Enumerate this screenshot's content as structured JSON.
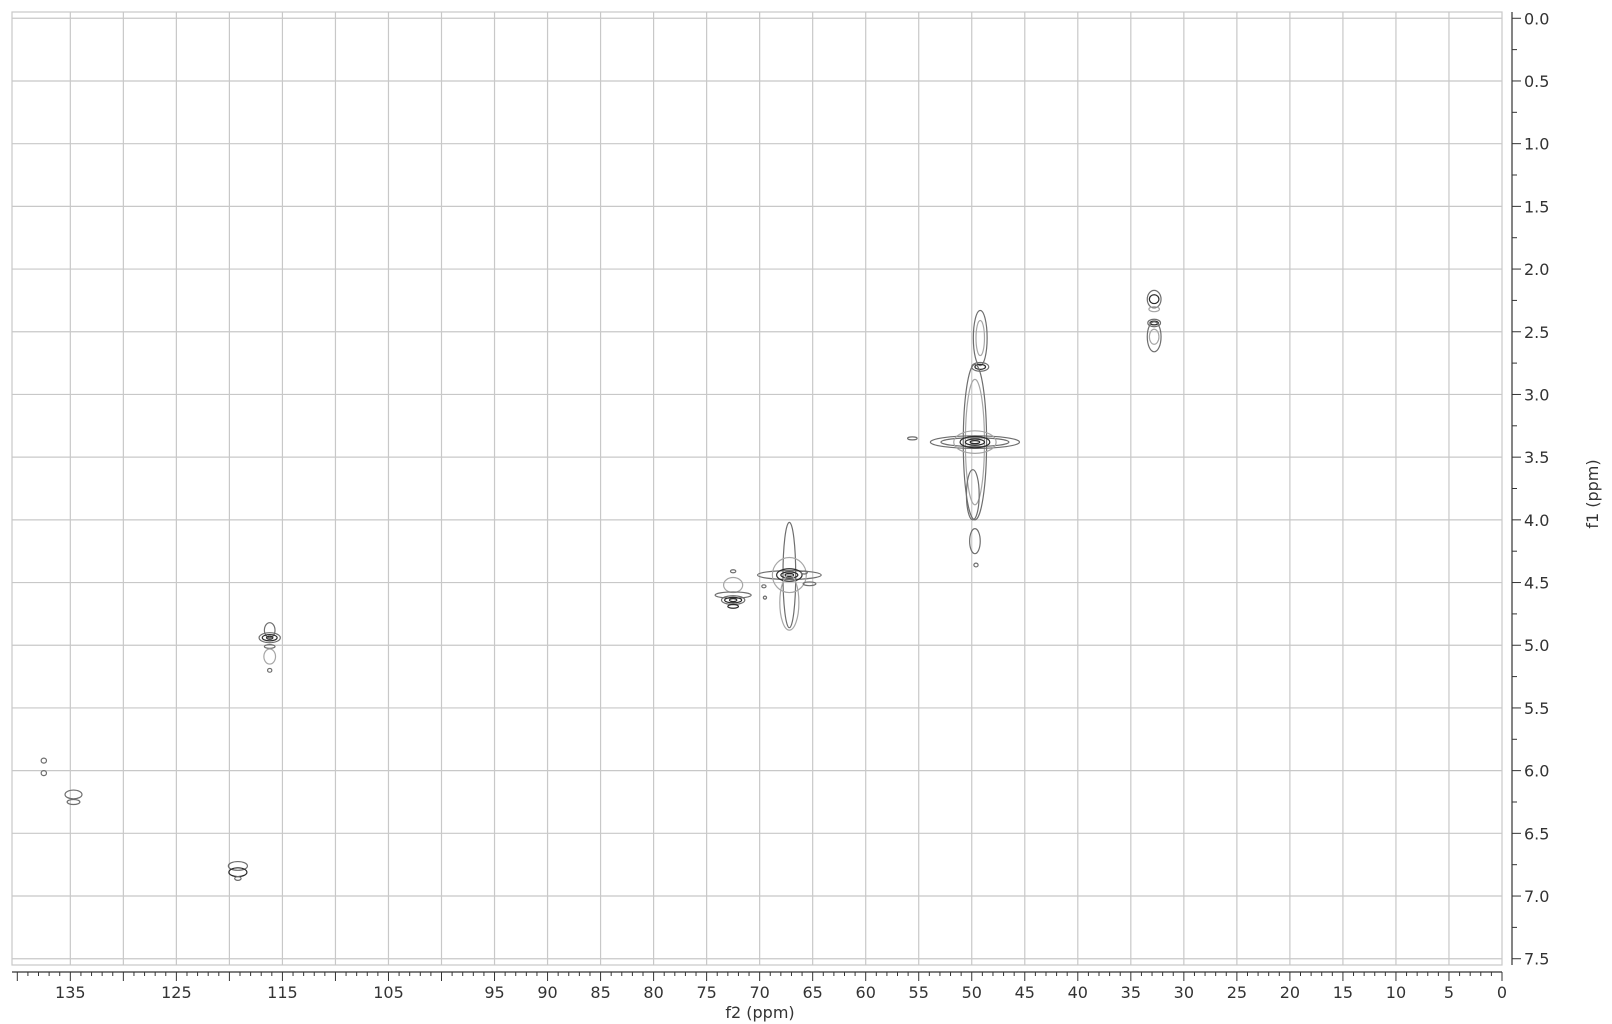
{
  "chart_data": {
    "type": "contour",
    "xlabel": "f2 (ppm)",
    "ylabel": "f1 (ppm)",
    "xlim": [
      140.5,
      0
    ],
    "ylim": [
      7.55,
      -0.05
    ],
    "x_reversed": true,
    "y_reversed": true,
    "grid": true,
    "x_ticks": [
      135,
      125,
      115,
      105,
      95,
      90,
      85,
      80,
      75,
      70,
      65,
      60,
      55,
      50,
      45,
      40,
      35,
      30,
      25,
      20,
      15,
      10,
      5,
      0
    ],
    "x_tick_labels": [
      "135",
      "125",
      "115",
      "105",
      "95",
      "90",
      "85",
      "80",
      "75",
      "70",
      "65",
      "60",
      "55",
      "50",
      "45",
      "40",
      "35",
      "30",
      "25",
      "20",
      "15",
      "10",
      "5",
      "0"
    ],
    "x_gridlines": [
      135,
      130,
      125,
      120,
      115,
      110,
      105,
      100,
      95,
      90,
      85,
      80,
      75,
      70,
      65,
      60,
      55,
      50,
      45,
      40,
      35,
      30,
      25,
      20,
      15,
      10,
      5
    ],
    "y_ticks": [
      0.0,
      0.5,
      1.0,
      1.5,
      2.0,
      2.5,
      3.0,
      3.5,
      4.0,
      4.5,
      5.0,
      5.5,
      6.0,
      6.5,
      7.0,
      7.5
    ],
    "y_tick_labels": [
      "0.0",
      "0.5",
      "1.0",
      "1.5",
      "2.0",
      "2.5",
      "3.0",
      "3.5",
      "4.0",
      "4.5",
      "5.0",
      "5.5",
      "6.0",
      "6.5",
      "7.0",
      "7.5"
    ],
    "colors": {
      "grid": "#c8c8c8",
      "axis": "#333333",
      "contour_dark": "#2a2a2a",
      "contour_mid": "#6e6e6e",
      "contour_light": "#a6a6a6"
    },
    "peaks": [
      {
        "f2": 137.5,
        "f1": 5.92,
        "contours": [
          {
            "wx": 0.25,
            "wy": 0.02,
            "shade": "mid"
          }
        ]
      },
      {
        "f2": 137.5,
        "f1": 6.02,
        "contours": [
          {
            "wx": 0.25,
            "wy": 0.02,
            "shade": "mid"
          }
        ]
      },
      {
        "f2": 134.7,
        "f1": 6.19,
        "contours": [
          {
            "wx": 0.8,
            "wy": 0.035,
            "shade": "mid"
          }
        ]
      },
      {
        "f2": 134.7,
        "f1": 6.25,
        "contours": [
          {
            "wx": 0.6,
            "wy": 0.02,
            "shade": "mid"
          }
        ]
      },
      {
        "f2": 119.2,
        "f1": 6.76,
        "contours": [
          {
            "wx": 0.9,
            "wy": 0.035,
            "shade": "mid"
          }
        ]
      },
      {
        "f2": 119.2,
        "f1": 6.81,
        "contours": [
          {
            "wx": 0.85,
            "wy": 0.035,
            "shade": "dark"
          }
        ]
      },
      {
        "f2": 119.2,
        "f1": 6.86,
        "contours": [
          {
            "wx": 0.3,
            "wy": 0.015,
            "shade": "mid"
          }
        ]
      },
      {
        "f2": 116.2,
        "f1": 4.88,
        "contours": [
          {
            "wx": 0.5,
            "wy": 0.06,
            "shade": "mid"
          }
        ]
      },
      {
        "f2": 116.2,
        "f1": 4.94,
        "contours": [
          {
            "wx": 1.0,
            "wy": 0.04,
            "shade": "mid"
          },
          {
            "wx": 0.7,
            "wy": 0.025,
            "shade": "dark"
          },
          {
            "wx": 0.3,
            "wy": 0.012,
            "shade": "dark"
          }
        ]
      },
      {
        "f2": 116.2,
        "f1": 5.01,
        "contours": [
          {
            "wx": 0.5,
            "wy": 0.015,
            "shade": "mid"
          }
        ]
      },
      {
        "f2": 116.2,
        "f1": 5.09,
        "contours": [
          {
            "wx": 0.55,
            "wy": 0.06,
            "shade": "light"
          }
        ]
      },
      {
        "f2": 116.2,
        "f1": 5.2,
        "contours": [
          {
            "wx": 0.2,
            "wy": 0.015,
            "shade": "mid"
          }
        ]
      },
      {
        "f2": 72.5,
        "f1": 4.41,
        "contours": [
          {
            "wx": 0.25,
            "wy": 0.012,
            "shade": "mid"
          }
        ]
      },
      {
        "f2": 72.5,
        "f1": 4.52,
        "contours": [
          {
            "wx": 0.9,
            "wy": 0.06,
            "shade": "light"
          }
        ]
      },
      {
        "f2": 72.5,
        "f1": 4.6,
        "contours": [
          {
            "wx": 1.7,
            "wy": 0.025,
            "shade": "mid"
          }
        ]
      },
      {
        "f2": 72.5,
        "f1": 4.64,
        "contours": [
          {
            "wx": 1.1,
            "wy": 0.035,
            "shade": "mid"
          },
          {
            "wx": 0.8,
            "wy": 0.022,
            "shade": "dark"
          },
          {
            "wx": 0.35,
            "wy": 0.01,
            "shade": "dark"
          }
        ]
      },
      {
        "f2": 72.5,
        "f1": 4.69,
        "contours": [
          {
            "wx": 0.5,
            "wy": 0.015,
            "shade": "dark"
          }
        ]
      },
      {
        "f2": 69.5,
        "f1": 4.62,
        "contours": [
          {
            "wx": 0.15,
            "wy": 0.012,
            "shade": "mid"
          }
        ]
      },
      {
        "f2": 67.2,
        "f1": 4.44,
        "contours": [
          {
            "wx": 0.6,
            "wy": 0.42,
            "shade": "mid"
          },
          {
            "wx": 3.0,
            "wy": 0.035,
            "shade": "mid"
          },
          {
            "wx": 1.6,
            "wy": 0.14,
            "shade": "light"
          },
          {
            "wx": 1.2,
            "wy": 0.05,
            "shade": "dark"
          },
          {
            "wx": 0.8,
            "wy": 0.025,
            "shade": "dark"
          },
          {
            "wx": 0.4,
            "wy": 0.01,
            "shade": "dark"
          }
        ]
      },
      {
        "f2": 67.2,
        "f1": 4.66,
        "contours": [
          {
            "wx": 0.9,
            "wy": 0.22,
            "shade": "light"
          }
        ]
      },
      {
        "f2": 65.3,
        "f1": 4.51,
        "contours": [
          {
            "wx": 0.6,
            "wy": 0.015,
            "shade": "mid"
          }
        ]
      },
      {
        "f2": 65.8,
        "f1": 4.42,
        "contours": [
          {
            "wx": 0.3,
            "wy": 0.012,
            "shade": "mid"
          }
        ]
      },
      {
        "f2": 69.6,
        "f1": 4.53,
        "contours": [
          {
            "wx": 0.2,
            "wy": 0.012,
            "shade": "mid"
          }
        ]
      },
      {
        "f2": 49.2,
        "f1": 2.55,
        "contours": [
          {
            "wx": 0.65,
            "wy": 0.22,
            "shade": "mid"
          },
          {
            "wx": 0.4,
            "wy": 0.14,
            "shade": "light"
          }
        ]
      },
      {
        "f2": 49.2,
        "f1": 2.78,
        "contours": [
          {
            "wx": 0.8,
            "wy": 0.035,
            "shade": "mid"
          },
          {
            "wx": 0.5,
            "wy": 0.02,
            "shade": "dark"
          }
        ]
      },
      {
        "f2": 49.7,
        "f1": 3.38,
        "contours": [
          {
            "wx": 1.1,
            "wy": 0.62,
            "shade": "mid"
          },
          {
            "wx": 0.9,
            "wy": 0.5,
            "shade": "light"
          },
          {
            "wx": 4.2,
            "wy": 0.05,
            "shade": "mid"
          },
          {
            "wx": 3.2,
            "wy": 0.035,
            "shade": "mid"
          },
          {
            "wx": 2.0,
            "wy": 0.09,
            "shade": "light"
          },
          {
            "wx": 1.4,
            "wy": 0.045,
            "shade": "dark"
          },
          {
            "wx": 0.9,
            "wy": 0.025,
            "shade": "dark"
          },
          {
            "wx": 0.45,
            "wy": 0.012,
            "shade": "dark"
          }
        ]
      },
      {
        "f2": 49.9,
        "f1": 3.8,
        "contours": [
          {
            "wx": 0.6,
            "wy": 0.2,
            "shade": "mid"
          }
        ]
      },
      {
        "f2": 49.7,
        "f1": 4.17,
        "contours": [
          {
            "wx": 0.5,
            "wy": 0.1,
            "shade": "mid"
          }
        ]
      },
      {
        "f2": 49.6,
        "f1": 4.36,
        "contours": [
          {
            "wx": 0.2,
            "wy": 0.015,
            "shade": "mid"
          }
        ]
      },
      {
        "f2": 55.6,
        "f1": 3.35,
        "contours": [
          {
            "wx": 0.45,
            "wy": 0.01,
            "shade": "mid"
          }
        ]
      },
      {
        "f2": 32.8,
        "f1": 2.24,
        "contours": [
          {
            "wx": 0.65,
            "wy": 0.07,
            "shade": "mid"
          },
          {
            "wx": 0.45,
            "wy": 0.035,
            "shade": "dark"
          }
        ]
      },
      {
        "f2": 32.8,
        "f1": 2.32,
        "contours": [
          {
            "wx": 0.5,
            "wy": 0.02,
            "shade": "light"
          }
        ]
      },
      {
        "f2": 32.8,
        "f1": 2.43,
        "contours": [
          {
            "wx": 0.6,
            "wy": 0.03,
            "shade": "mid"
          },
          {
            "wx": 0.4,
            "wy": 0.015,
            "shade": "dark"
          }
        ]
      },
      {
        "f2": 32.8,
        "f1": 2.54,
        "contours": [
          {
            "wx": 0.65,
            "wy": 0.12,
            "shade": "mid"
          },
          {
            "wx": 0.45,
            "wy": 0.06,
            "shade": "light"
          }
        ]
      }
    ]
  }
}
